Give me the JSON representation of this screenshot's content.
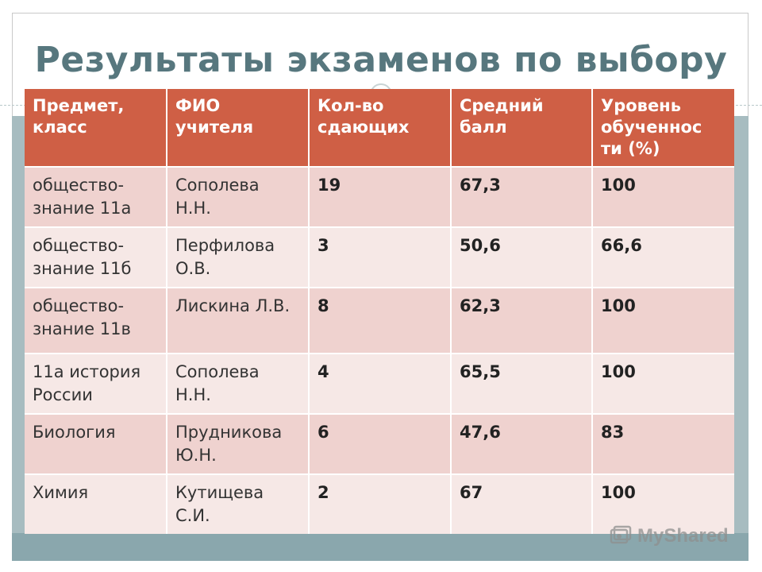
{
  "slide": {
    "title": "Результаты экзаменов по выбору"
  },
  "table": {
    "headers": [
      "Предмет, класс",
      "ФИО учителя",
      "Кол-во сдающих",
      "Средний балл",
      "Уровень обученнос ти (%)"
    ],
    "rows": [
      {
        "subject": "общество-знание 11а",
        "teacher": "Сополева Н.Н.",
        "count": "19",
        "avg": "67,3",
        "level": "100"
      },
      {
        "subject": "общество-знание 11б",
        "teacher": "Перфилова О.В.",
        "count": "3",
        "avg": "50,6",
        "level": "66,6"
      },
      {
        "subject": "общество-знание 11в",
        "teacher": "Лискина Л.В.",
        "count": "8",
        "avg": "62,3",
        "level": "100"
      },
      {
        "subject": "11а история России",
        "teacher": "Сополева Н.Н.",
        "count": "4",
        "avg": "65,5",
        "level": "100"
      },
      {
        "subject": "Биология",
        "teacher": "Прудникова Ю.Н.",
        "count": "6",
        "avg": "47,6",
        "level": "83"
      },
      {
        "subject": "Химия",
        "teacher": "Кутищева С.И.",
        "count": "2",
        "avg": "67",
        "level": "100"
      }
    ]
  },
  "watermark": {
    "text": "MyShared",
    "icon": "myshared-logo-icon"
  },
  "colors": {
    "title": "#57777e",
    "header_bg": "#cf5f45",
    "row_odd": "#efd2cf",
    "row_even": "#f6e8e6",
    "band": "#a7bcc0"
  }
}
